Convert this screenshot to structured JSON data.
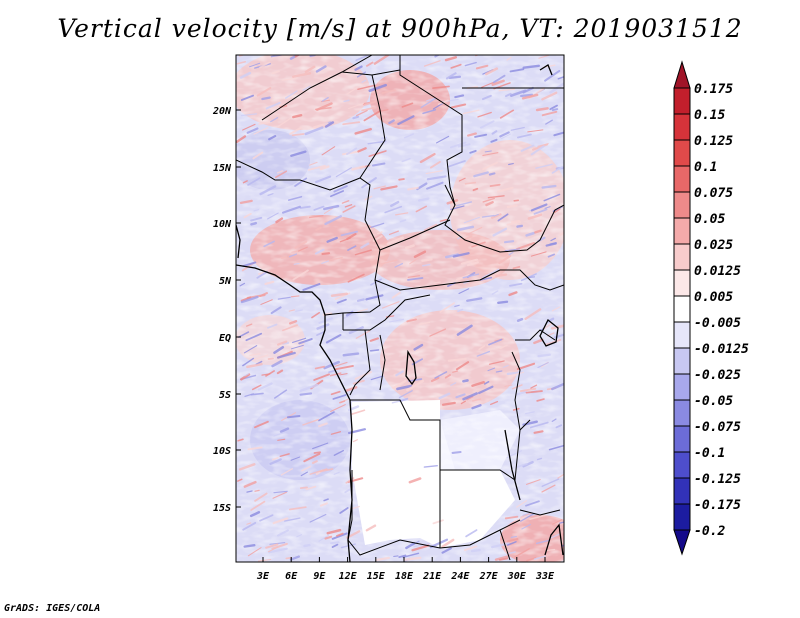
{
  "title": "Vertical velocity [m/s] at 900hPa, VT: 2019031512",
  "footer": "GrADS: IGES/COLA",
  "map": {
    "lat_labels": [
      "20N",
      "15N",
      "10N",
      "5N",
      "EQ",
      "5S",
      "10S",
      "15S"
    ],
    "lon_labels": [
      "3E",
      "6E",
      "9E",
      "12E",
      "15E",
      "18E",
      "21E",
      "24E",
      "27E",
      "30E",
      "33E"
    ]
  },
  "colorbar": {
    "labels": [
      "0.175",
      "0.15",
      "0.125",
      "0.1",
      "0.075",
      "0.05",
      "0.025",
      "0.0125",
      "0.005",
      "-0.005",
      "-0.0125",
      "-0.025",
      "-0.05",
      "-0.075",
      "-0.1",
      "-0.125",
      "-0.175",
      "-0.2"
    ],
    "colors": [
      "#a01428",
      "#c21f2c",
      "#d6333a",
      "#e04a4a",
      "#e86868",
      "#ee8a8a",
      "#f4aaaa",
      "#f8cccc",
      "#fce8e8",
      "#ffffff",
      "#e6e6fa",
      "#c8c8f2",
      "#a8a8ec",
      "#8a8ae2",
      "#6c6cd8",
      "#4e4ecc",
      "#3232b8",
      "#1c1ca0",
      "#140a8a"
    ]
  }
}
